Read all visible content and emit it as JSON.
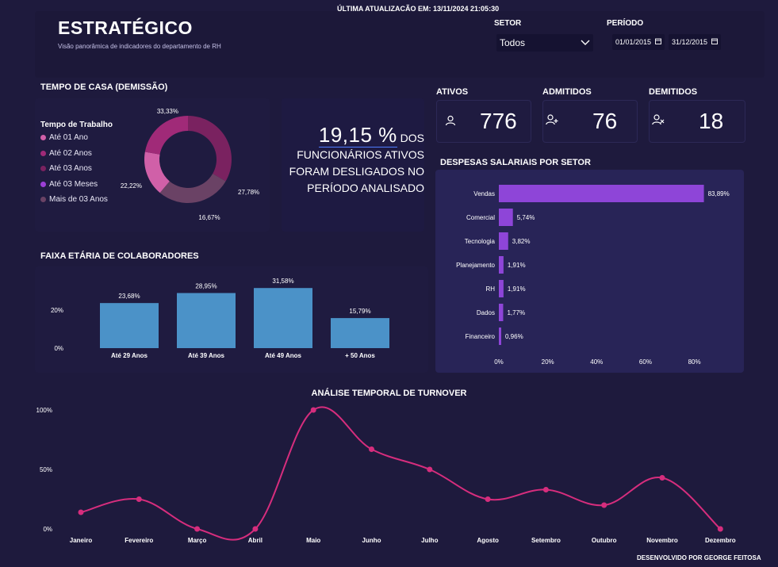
{
  "update": {
    "label": "ÚLTIMA ATUALIZAÇÃO EM:",
    "value": "13/11/2024 21:05:30"
  },
  "header": {
    "title": "ESTRATÉGICO",
    "subtitle": "Visão panorâmica de indicadores do departamento de RH"
  },
  "filters": {
    "sector_label": "SETOR",
    "sector_value": "Todos",
    "period_label": "PERÍODO",
    "date_start": "01/01/2015",
    "date_end": "31/12/2015"
  },
  "tenure": {
    "title": "TEMPO DE CASA (DEMISSÃO)",
    "legend_title": "Tempo de Trabalho",
    "colors": [
      "#d060a8",
      "#a02a78",
      "#7a2260",
      "#9b3fd6",
      "#6a4265"
    ],
    "chart_data": {
      "type": "pie",
      "labels": [
        "Até 01 Ano",
        "Até 02 Anos",
        "Até 03 Anos",
        "Até 03 Meses",
        "Mais de 03 Anos"
      ],
      "values": [
        16.67,
        22.22,
        33.33,
        0,
        27.78
      ],
      "value_labels": [
        "16,67%",
        "22,22%",
        "33,33%",
        "",
        "27,78%"
      ]
    }
  },
  "turnover_rate": {
    "value": "19,15 %",
    "suffix": "DOS",
    "line2": "FUNCIONÁRIOS ATIVOS",
    "line3": "FORAM DESLIGADOS NO",
    "line4": "PERÍODO ANALISADO"
  },
  "kpis": {
    "ativos": {
      "label": "ATIVOS",
      "value": "776"
    },
    "admitidos": {
      "label": "ADMITIDOS",
      "value": "76"
    },
    "demitidos": {
      "label": "DEMITIDOS",
      "value": "18"
    }
  },
  "age": {
    "title": "FAIXA ETÁRIA DE COLABORADORES",
    "color": "#4b92c8",
    "chart_data": {
      "type": "bar",
      "categories": [
        "Até 29 Anos",
        "Até 39 Anos",
        "Até 49 Anos",
        "+ 50 Anos"
      ],
      "values": [
        23.68,
        28.95,
        31.58,
        15.79
      ],
      "value_labels": [
        "23,68%",
        "28,95%",
        "31,58%",
        "15,79%"
      ],
      "yticks": [
        "0%",
        "20%"
      ],
      "ylim": [
        0,
        35
      ]
    }
  },
  "salary": {
    "title": "DESPESAS SALARIAIS POR SETOR",
    "color": "#8e45d8",
    "chart_data": {
      "type": "bar",
      "orientation": "horizontal",
      "categories": [
        "Vendas",
        "Comercial",
        "Tecnologia",
        "Planejamento",
        "RH",
        "Dados",
        "Financeiro"
      ],
      "values": [
        83.89,
        5.74,
        3.82,
        1.91,
        1.91,
        1.77,
        0.96
      ],
      "value_labels": [
        "83,89%",
        "5,74%",
        "3,82%",
        "1,91%",
        "1,91%",
        "1,77%",
        "0,96%"
      ],
      "xticks": [
        "0%",
        "20%",
        "40%",
        "60%",
        "80%"
      ],
      "xlim": [
        0,
        85
      ]
    }
  },
  "turnover": {
    "title": "ANÁLISE TEMPORAL DE TURNOVER",
    "color": "#d62d7d",
    "chart_data": {
      "type": "line",
      "categories": [
        "Janeiro",
        "Fevereiro",
        "Março",
        "Abril",
        "Maio",
        "Junho",
        "Julho",
        "Agosto",
        "Setembro",
        "Outubro",
        "Novembro",
        "Dezembro"
      ],
      "values": [
        14,
        25,
        0,
        0,
        100,
        67,
        50,
        25,
        33,
        20,
        43,
        0
      ],
      "yticks": [
        "0%",
        "50%",
        "100%"
      ],
      "ylim": [
        0,
        100
      ]
    }
  },
  "footer": {
    "credit": "DESENVOLVIDO POR GEORGE FEITOSA"
  }
}
